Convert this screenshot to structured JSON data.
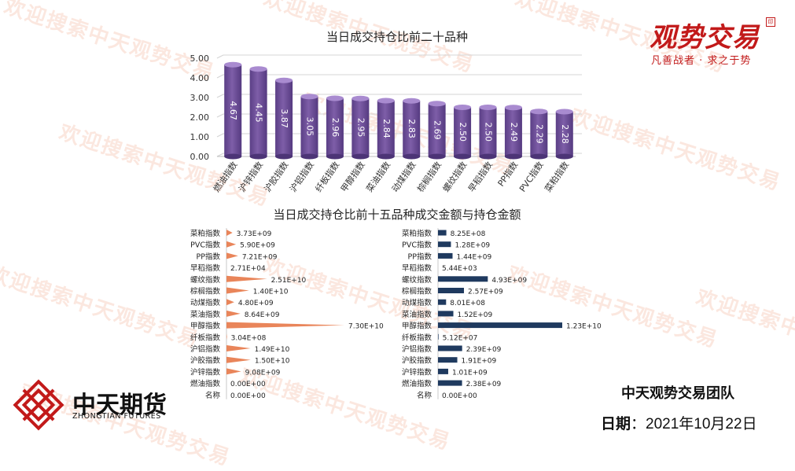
{
  "watermark_text": "欢迎搜索中天观势交易",
  "brand": {
    "logo_text": "观势交易",
    "seal_text": "印",
    "slogan": "凡善战者 · 求之于势"
  },
  "company": {
    "name_cn": "中天期货",
    "name_en": "ZHONGTIAN FUTURES"
  },
  "footer": {
    "team": "中天观势交易团队",
    "date_label": "日期",
    "date_sep": "：",
    "date_value": "2021年10月22日"
  },
  "colors": {
    "bar_purple": "#7e5ea8",
    "bar_orange": "#e9855a",
    "bar_navy": "#1f3a5f"
  },
  "chart_data": [
    {
      "type": "bar",
      "title": "当日成交持仓比前二十品种",
      "categories": [
        "燃油指数",
        "沪锌指数",
        "沪胶指数",
        "沪铝指数",
        "纤板指数",
        "甲醇指数",
        "菜油指数",
        "动煤指数",
        "棕榈指数",
        "螺纹指数",
        "早稻指数",
        "PP指数",
        "PVC指数",
        "菜粕指数"
      ],
      "values": [
        4.67,
        4.45,
        3.87,
        3.05,
        2.96,
        2.95,
        2.84,
        2.83,
        2.69,
        2.5,
        2.5,
        2.49,
        2.29,
        2.28
      ],
      "value_labels": [
        "4.67",
        "4.45",
        "3.87",
        "3.05",
        "2.96",
        "2.95",
        "2.84",
        "2.83",
        "2.69",
        "2.50",
        "2.50",
        "2.49",
        "2.29",
        "2.28"
      ],
      "yticks": [
        "5.00",
        "4.00",
        "3.00",
        "2.00",
        "1.00",
        "0.00"
      ],
      "ylim": [
        0,
        5
      ],
      "grid": true
    },
    {
      "type": "bar",
      "orientation": "horizontal",
      "title": "当日成交持仓比前十五品种成交金额与持仓金额",
      "categories": [
        "菜粕指数",
        "PVC指数",
        "PP指数",
        "早稻指数",
        "螺纹指数",
        "棕榈指数",
        "动煤指数",
        "菜油指数",
        "甲醇指数",
        "纤板指数",
        "沪铝指数",
        "沪胶指数",
        "沪锌指数",
        "燃油指数",
        "名称"
      ],
      "series": [
        {
          "values": [
            3730000000.0,
            5900000000.0,
            7210000000.0,
            27100.0,
            25100000000.0,
            14000000000.0,
            4800000000.0,
            8640000000.0,
            73000000000.0,
            304000000.0,
            14900000000.0,
            15000000000.0,
            9080000000.0,
            0,
            0
          ],
          "value_labels": [
            "3.73E+09",
            "5.90E+09",
            "7.21E+09",
            "2.71E+04",
            "2.51E+10",
            "1.40E+10",
            "4.80E+09",
            "8.64E+09",
            "7.30E+10",
            "3.04E+08",
            "1.49E+10",
            "1.50E+10",
            "9.08E+09",
            "0.00E+00",
            "0.00E+00"
          ]
        },
        {
          "values": [
            825000000.0,
            1280000000.0,
            1440000000.0,
            5440.0,
            4930000000.0,
            2570000000.0,
            801000000.0,
            1520000000.0,
            12300000000.0,
            51200000.0,
            2390000000.0,
            1910000000.0,
            1010000000.0,
            2380000000.0,
            0
          ],
          "value_labels": [
            "8.25E+08",
            "1.28E+09",
            "1.44E+09",
            "5.44E+03",
            "4.93E+09",
            "2.57E+09",
            "8.01E+08",
            "1.52E+09",
            "1.23E+10",
            "5.12E+07",
            "2.39E+09",
            "1.91E+09",
            "1.01E+09",
            "2.38E+09",
            "0.00E+00"
          ]
        }
      ]
    }
  ]
}
